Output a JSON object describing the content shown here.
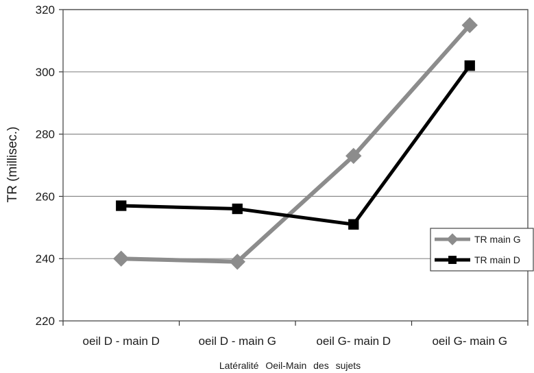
{
  "chart_data": {
    "type": "line",
    "categories": [
      "oeil D - main D",
      "oeil D - main G",
      "oeil G- main D",
      "oeil G- main G"
    ],
    "series": [
      {
        "name": "TR main G",
        "values": [
          240,
          239,
          273,
          315
        ],
        "color": "#8c8c8c",
        "marker": "diamond"
      },
      {
        "name": "TR main D",
        "values": [
          257,
          256,
          251,
          302
        ],
        "color": "#000000",
        "marker": "square"
      }
    ],
    "ylabel": "TR (millisec.)",
    "xlabel": "Latéralité Oeil-Main des sujets",
    "ylim": [
      220,
      320
    ],
    "yticks": [
      220,
      240,
      260,
      280,
      300,
      320
    ],
    "grid": true,
    "legend": "right"
  }
}
